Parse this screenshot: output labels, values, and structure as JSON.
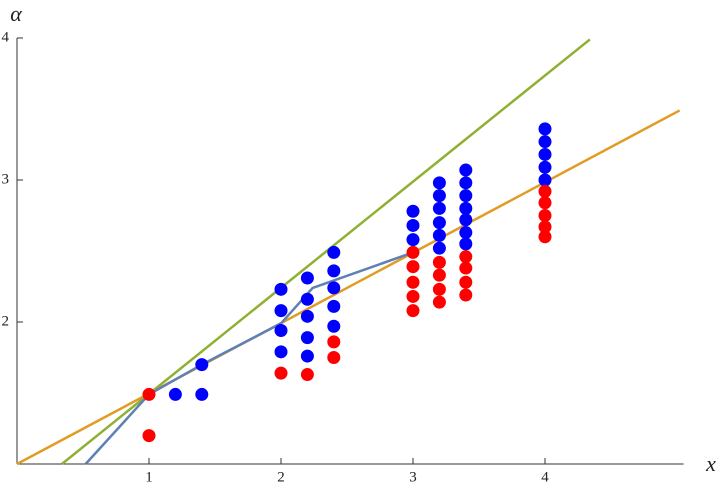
{
  "chart_data": {
    "type": "scatter",
    "x_label": "x",
    "y_label": "α",
    "xlim": [
      0,
      5.05
    ],
    "ylim": [
      1,
      4
    ],
    "xticks": [
      1,
      2,
      3,
      4
    ],
    "yticks": [
      2,
      3,
      4
    ],
    "series": [
      {
        "mode": "line",
        "color": "#8fb032",
        "x": [
          0.34,
          4.34
        ],
        "values": [
          1.0,
          3.99
        ]
      },
      {
        "mode": "line",
        "color": "#e19c24",
        "x": [
          0,
          5.02
        ],
        "values": [
          1.0,
          3.49
        ]
      },
      {
        "mode": "line",
        "color": "#5e81b5",
        "x": [
          0.52,
          1,
          1.4,
          2,
          2.24,
          3
        ],
        "values": [
          1.0,
          1.49,
          1.7,
          1.99,
          2.24,
          2.49
        ]
      },
      {
        "mode": "points",
        "color": "#0000ff",
        "x": [
          1.2,
          1.4,
          1.4,
          2,
          2,
          2,
          2,
          2.2,
          2.2,
          2.2,
          2.2,
          2.2,
          2.4,
          2.4,
          2.4,
          2.4,
          2.4,
          3,
          3,
          3,
          3.2,
          3.2,
          3.2,
          3.2,
          3.2,
          3.2,
          3.4,
          3.4,
          3.4,
          3.4,
          3.4,
          3.4,
          3.4,
          4,
          4,
          4,
          4,
          4
        ],
        "values": [
          1.49,
          1.7,
          1.49,
          2.23,
          2.08,
          1.94,
          1.79,
          2.31,
          2.16,
          2.04,
          1.89,
          1.76,
          2.49,
          2.36,
          2.24,
          2.11,
          1.97,
          2.78,
          2.68,
          2.58,
          2.98,
          2.89,
          2.8,
          2.7,
          2.61,
          2.52,
          3.07,
          2.98,
          2.89,
          2.8,
          2.72,
          2.63,
          2.55,
          3.36,
          3.27,
          3.18,
          3.09,
          3.0
        ]
      },
      {
        "mode": "points",
        "color": "#ff0000",
        "x": [
          1,
          1,
          2,
          2.2,
          2.4,
          2.4,
          3,
          3,
          3,
          3,
          3,
          3.2,
          3.2,
          3.2,
          3.2,
          3.4,
          3.4,
          3.4,
          3.4,
          4,
          4,
          4,
          4,
          4
        ],
        "values": [
          1.49,
          1.2,
          1.64,
          1.63,
          1.86,
          1.75,
          2.49,
          2.39,
          2.28,
          2.18,
          2.08,
          2.42,
          2.33,
          2.23,
          2.14,
          2.46,
          2.38,
          2.28,
          2.19,
          2.92,
          2.84,
          2.75,
          2.67,
          2.6
        ]
      }
    ]
  }
}
